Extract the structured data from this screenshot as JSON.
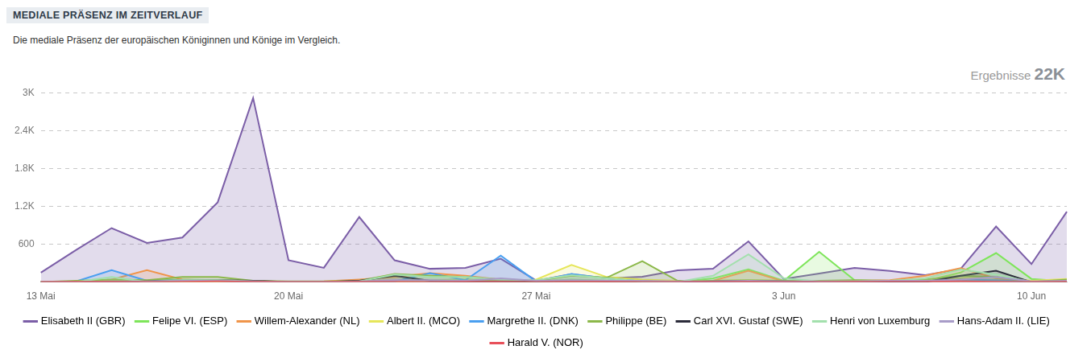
{
  "chart_data": {
    "type": "area",
    "title": "MEDIALE PRÄSENZ IM ZEITVERLAUF",
    "subtitle": "Die mediale Präsenz der europäischen Königinnen und Könige im Vergleich.",
    "annotation": {
      "label": "Ergebnisse",
      "value": "22K"
    },
    "categories": [
      "13 Mai",
      null,
      null,
      null,
      null,
      null,
      null,
      "20 Mai",
      null,
      null,
      null,
      null,
      null,
      null,
      "27 Mai",
      null,
      null,
      null,
      null,
      null,
      null,
      "3 Jun",
      null,
      null,
      null,
      null,
      null,
      null,
      "10 Jun",
      null
    ],
    "ylim": [
      0,
      3000
    ],
    "yticks": [
      600,
      {
        "value": 1200,
        "label": "1.2K"
      },
      {
        "value": 1800,
        "label": "1.8K"
      },
      {
        "value": 2400,
        "label": "2.4K"
      },
      {
        "value": 3000,
        "label": "3K"
      }
    ],
    "grid": true,
    "legend": "bottom",
    "series": [
      {
        "name": "Elisabeth II (GBR)",
        "color": "#7b5ea7",
        "values": [
          150,
          510,
          855,
          620,
          705,
          1265,
          2915,
          345,
          225,
          1030,
          345,
          210,
          225,
          370,
          25,
          125,
          60,
          85,
          185,
          210,
          645,
          50,
          135,
          225,
          175,
          110,
          210,
          880,
          285,
          1115
        ]
      },
      {
        "name": "Felipe VI. (ESP)",
        "color": "#7ee55a",
        "values": [
          0,
          0,
          30,
          20,
          40,
          30,
          10,
          5,
          0,
          0,
          20,
          30,
          40,
          20,
          10,
          40,
          20,
          10,
          0,
          60,
          200,
          20,
          480,
          30,
          10,
          20,
          150,
          460,
          50,
          10
        ]
      },
      {
        "name": "Willem-Alexander (NL)",
        "color": "#f0954a",
        "values": [
          0,
          10,
          40,
          190,
          40,
          20,
          10,
          0,
          10,
          40,
          80,
          140,
          100,
          40,
          20,
          10,
          10,
          20,
          10,
          20,
          180,
          10,
          10,
          20,
          30,
          100,
          220,
          60,
          0,
          20
        ]
      },
      {
        "name": "Albert II. (MCO)",
        "color": "#e6e65a",
        "values": [
          0,
          0,
          0,
          0,
          0,
          0,
          0,
          0,
          0,
          0,
          10,
          20,
          30,
          20,
          40,
          270,
          80,
          40,
          20,
          20,
          30,
          20,
          10,
          20,
          20,
          40,
          60,
          80,
          20,
          50
        ]
      },
      {
        "name": "Margrethe II. (DNK)",
        "color": "#4a9ff0",
        "values": [
          0,
          10,
          190,
          20,
          30,
          20,
          0,
          0,
          0,
          0,
          10,
          140,
          30,
          420,
          10,
          130,
          60,
          10,
          0,
          0,
          20,
          10,
          0,
          0,
          0,
          20,
          40,
          30,
          0,
          10
        ]
      },
      {
        "name": "Philippe (BE)",
        "color": "#8cb84a",
        "values": [
          0,
          20,
          40,
          30,
          80,
          80,
          20,
          10,
          10,
          20,
          130,
          100,
          80,
          40,
          20,
          100,
          70,
          330,
          20,
          20,
          30,
          20,
          20,
          30,
          20,
          40,
          100,
          80,
          0,
          40
        ]
      },
      {
        "name": "Carl XVI. Gustaf (SWE)",
        "color": "#2b2b3a",
        "values": [
          0,
          0,
          0,
          10,
          20,
          30,
          20,
          0,
          0,
          20,
          100,
          20,
          10,
          10,
          10,
          20,
          10,
          10,
          0,
          10,
          20,
          10,
          0,
          0,
          0,
          0,
          100,
          180,
          0,
          0
        ]
      },
      {
        "name": "Henri von Luxemburg",
        "color": "#a3e0ad",
        "values": [
          0,
          0,
          80,
          0,
          30,
          30,
          10,
          0,
          0,
          10,
          120,
          80,
          80,
          40,
          30,
          110,
          60,
          10,
          0,
          100,
          440,
          60,
          10,
          10,
          20,
          60,
          200,
          120,
          0,
          10
        ]
      },
      {
        "name": "Hans-Adam II. (LIE)",
        "color": "#a89cc8",
        "values": [
          0,
          0,
          10,
          10,
          20,
          20,
          10,
          0,
          0,
          10,
          30,
          30,
          20,
          60,
          20,
          30,
          20,
          20,
          10,
          10,
          20,
          10,
          10,
          10,
          20,
          20,
          40,
          80,
          10,
          20
        ]
      },
      {
        "name": "Harald V. (NOR)",
        "color": "#e8505a",
        "values": [
          0,
          5,
          5,
          0,
          5,
          10,
          5,
          0,
          0,
          5,
          5,
          0,
          5,
          5,
          0,
          5,
          5,
          0,
          0,
          5,
          5,
          0,
          0,
          5,
          5,
          5,
          10,
          5,
          0,
          5
        ]
      }
    ]
  }
}
